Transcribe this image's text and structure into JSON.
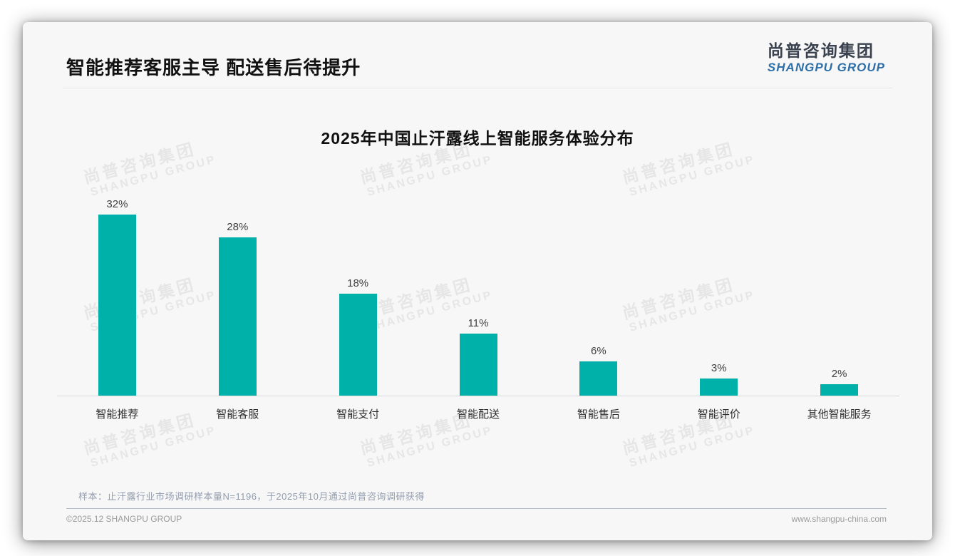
{
  "header": {
    "title": "智能推荐客服主导 配送售后待提升"
  },
  "logo": {
    "cn": "尚普咨询集团",
    "en": "SHANGPU GROUP"
  },
  "watermark": {
    "cn": "尚普咨询集团",
    "en": "SHANGPU GROUP"
  },
  "colors": {
    "bar": "#00b1a9",
    "logo_en": "#2f6fa8",
    "footer_divider": "#a9b6c6"
  },
  "chart_data": {
    "type": "bar",
    "title": "2025年中国止汗露线上智能服务体验分布",
    "categories": [
      "智能推荐",
      "智能客服",
      "智能支付",
      "智能配送",
      "智能售后",
      "智能评价",
      "其他智能服务"
    ],
    "values": [
      32,
      28,
      18,
      11,
      6,
      3,
      2
    ],
    "data_labels": [
      "32%",
      "28%",
      "18%",
      "11%",
      "6%",
      "3%",
      "2%"
    ],
    "unit": "%",
    "xlabel": "",
    "ylabel": "",
    "ylim": [
      0,
      37
    ],
    "grid": false,
    "legend": "none"
  },
  "footnote": "样本：止汗露行业市场调研样本量N=1196，于2025年10月通过尚普咨询调研获得",
  "footer": {
    "left": "©2025.12 SHANGPU GROUP",
    "right": "www.shangpu-china.com"
  }
}
